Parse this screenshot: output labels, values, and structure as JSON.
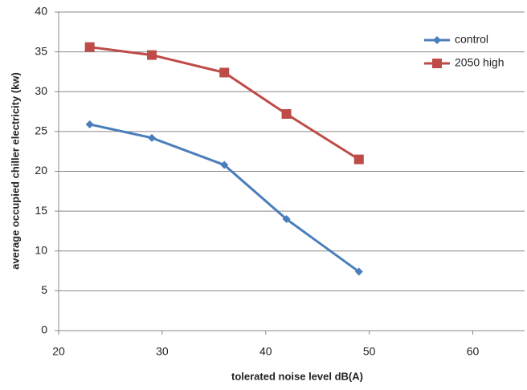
{
  "chart_data": {
    "type": "line",
    "x_label": "tolerated noise level dB(A)",
    "y_label": "average occupied chiller electricity (kw)",
    "x": [
      23,
      29,
      36,
      42,
      49
    ],
    "series": [
      {
        "name": "control",
        "color": "#4a7ebb",
        "marker": "diamond",
        "values": [
          25.9,
          24.2,
          20.8,
          14.0,
          7.4
        ]
      },
      {
        "name": "2050 high",
        "color": "#be4b48",
        "marker": "square",
        "values": [
          35.6,
          34.6,
          32.4,
          27.2,
          21.5
        ]
      }
    ],
    "xlim": [
      20,
      65
    ],
    "xticks": [
      20,
      30,
      40,
      50,
      60
    ],
    "ylim": [
      0,
      40
    ],
    "yticks": [
      0,
      5,
      10,
      15,
      20,
      25,
      30,
      35,
      40
    ],
    "grid": true,
    "legend": "top-right"
  }
}
